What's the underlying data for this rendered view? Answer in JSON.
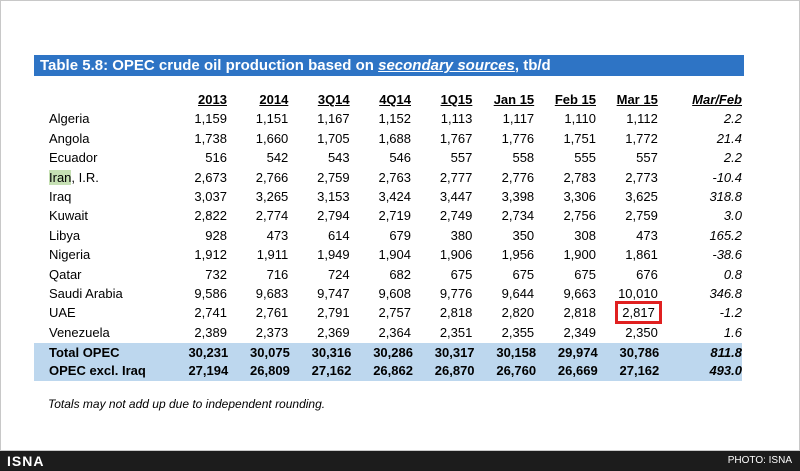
{
  "title": {
    "prefix": "Table 5.8: OPEC crude oil production based on ",
    "source_word": "secondary sources",
    "suffix": ", tb/d"
  },
  "columns": [
    "2013",
    "2014",
    "3Q14",
    "4Q14",
    "1Q15",
    "Jan 15",
    "Feb 15",
    "Mar 15",
    "Mar/Feb"
  ],
  "rows": [
    {
      "country": "Algeria",
      "values": [
        "1,159",
        "1,151",
        "1,167",
        "1,152",
        "1,113",
        "1,117",
        "1,110",
        "1,112"
      ],
      "change": "2.2"
    },
    {
      "country": "Angola",
      "values": [
        "1,738",
        "1,660",
        "1,705",
        "1,688",
        "1,767",
        "1,776",
        "1,751",
        "1,772"
      ],
      "change": "21.4"
    },
    {
      "country": "Ecuador",
      "values": [
        "516",
        "542",
        "543",
        "546",
        "557",
        "558",
        "555",
        "557"
      ],
      "change": "2.2"
    },
    {
      "country_main": "Iran",
      "country_suffix": ", I.R.",
      "values": [
        "2,673",
        "2,766",
        "2,759",
        "2,763",
        "2,777",
        "2,776",
        "2,783",
        "2,773"
      ],
      "change": "-10.4"
    },
    {
      "country": "Iraq",
      "values": [
        "3,037",
        "3,265",
        "3,153",
        "3,424",
        "3,447",
        "3,398",
        "3,306",
        "3,625"
      ],
      "change": "318.8"
    },
    {
      "country": "Kuwait",
      "values": [
        "2,822",
        "2,774",
        "2,794",
        "2,719",
        "2,749",
        "2,734",
        "2,756",
        "2,759"
      ],
      "change": "3.0"
    },
    {
      "country": "Libya",
      "values": [
        "928",
        "473",
        "614",
        "679",
        "380",
        "350",
        "308",
        "473"
      ],
      "change": "165.2"
    },
    {
      "country": "Nigeria",
      "values": [
        "1,912",
        "1,911",
        "1,949",
        "1,904",
        "1,906",
        "1,956",
        "1,900",
        "1,861"
      ],
      "change": "-38.6"
    },
    {
      "country": "Qatar",
      "values": [
        "732",
        "716",
        "724",
        "682",
        "675",
        "675",
        "675",
        "676"
      ],
      "change": "0.8"
    },
    {
      "country": "Saudi Arabia",
      "values": [
        "9,586",
        "9,683",
        "9,747",
        "9,608",
        "9,776",
        "9,644",
        "9,663",
        "10,010"
      ],
      "change": "346.8"
    },
    {
      "country": "UAE",
      "values": [
        "2,741",
        "2,761",
        "2,791",
        "2,757",
        "2,818",
        "2,820",
        "2,818",
        "2,817"
      ],
      "change": "-1.2"
    },
    {
      "country": "Venezuela",
      "values": [
        "2,389",
        "2,373",
        "2,369",
        "2,364",
        "2,351",
        "2,355",
        "2,349",
        "2,350"
      ],
      "change": "1.6"
    }
  ],
  "totals": [
    {
      "label": "Total  OPEC",
      "values": [
        "30,231",
        "30,075",
        "30,316",
        "30,286",
        "30,317",
        "30,158",
        "29,974",
        "30,786"
      ],
      "change": "811.8"
    },
    {
      "label": "OPEC excl. Iraq",
      "values": [
        "27,194",
        "26,809",
        "27,162",
        "26,862",
        "26,870",
        "26,760",
        "26,669",
        "27,162"
      ],
      "change": "493.0"
    }
  ],
  "footnote": "Totals may not add up due to independent rounding.",
  "footer": {
    "logo": "ISNA",
    "credit": "PHOTO: ISNA"
  },
  "colors": {
    "title_bar": "#2e74c5",
    "totals_band": "#bdd7ee",
    "iran_highlight": "#c6e0b4",
    "highlight_box": "#e02020",
    "footer_bar": "#1c1c1c"
  }
}
